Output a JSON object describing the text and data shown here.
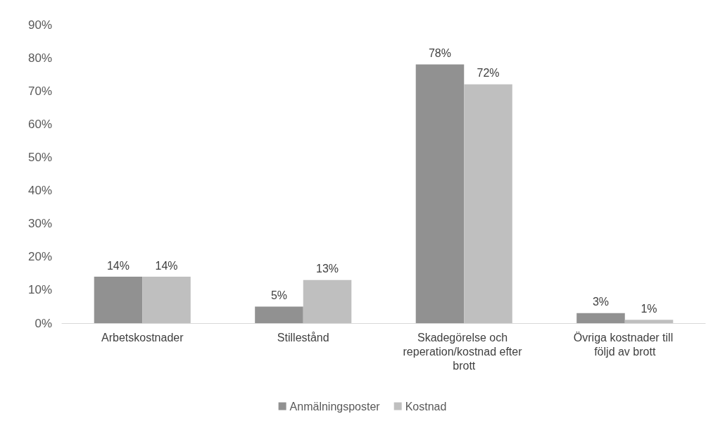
{
  "chart_data": {
    "type": "bar",
    "categories": [
      "Arbetskostnader",
      "Stillestånd",
      "Skadegörelse och reperation/kostnad efter brott",
      "Övriga kostnader till följd av brott"
    ],
    "series": [
      {
        "name": "Anmälningsposter",
        "color": "#919191",
        "values": [
          14,
          5,
          78,
          3
        ],
        "value_labels": [
          "14%",
          "5%",
          "78%",
          "3%"
        ]
      },
      {
        "name": "Kostnad",
        "color": "#bfbfbf",
        "values": [
          14,
          13,
          72,
          1
        ],
        "value_labels": [
          "14%",
          "13%",
          "72%",
          "1%"
        ]
      }
    ],
    "ylim": [
      0,
      90
    ],
    "yticks": [
      {
        "value": 0,
        "label": "0%"
      },
      {
        "value": 10,
        "label": "10%"
      },
      {
        "value": 20,
        "label": "20%"
      },
      {
        "value": 30,
        "label": "30%"
      },
      {
        "value": 40,
        "label": "40%"
      },
      {
        "value": 50,
        "label": "50%"
      },
      {
        "value": 60,
        "label": "60%"
      },
      {
        "value": 70,
        "label": "70%"
      },
      {
        "value": 80,
        "label": "80%"
      },
      {
        "value": 90,
        "label": "90%"
      }
    ],
    "grid": false,
    "legend": "bottom"
  }
}
